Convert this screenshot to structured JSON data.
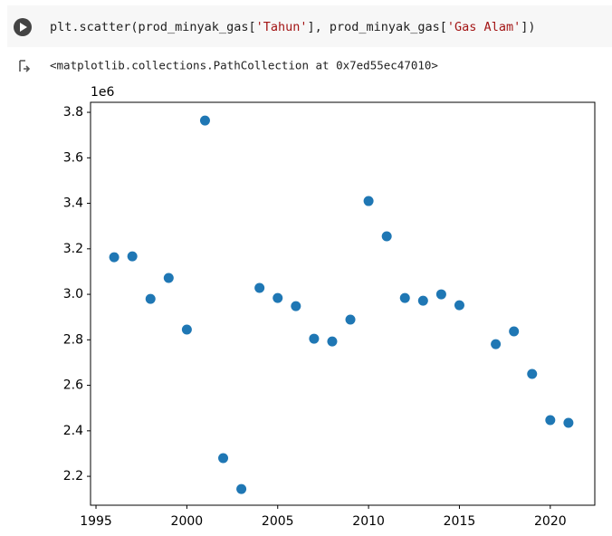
{
  "code_cell": {
    "tokens": [
      {
        "text": "plt.scatter(prod_minyak_gas[",
        "color": "#212121"
      },
      {
        "text": "'Tahun'",
        "color": "#a31515"
      },
      {
        "text": "], prod_minyak_gas[",
        "color": "#212121"
      },
      {
        "text": "'Gas Alam'",
        "color": "#a31515"
      },
      {
        "text": "])",
        "color": "#212121"
      }
    ]
  },
  "output": {
    "text": "<matplotlib.collections.PathCollection at 0x7ed55ec47010>"
  },
  "chart_data": {
    "type": "scatter",
    "color": "#1f77b4",
    "y_offset_label": "1e6",
    "x": [
      1996,
      1997,
      1998,
      1999,
      2000,
      2001,
      2002,
      2003,
      2004,
      2005,
      2006,
      2007,
      2008,
      2009,
      2010,
      2011,
      2012,
      2013,
      2014,
      2015,
      2017,
      2018,
      2019,
      2020,
      2021
    ],
    "values": [
      3.163,
      3.167,
      2.98,
      3.072,
      2.845,
      3.764,
      2.28,
      2.144,
      3.028,
      2.984,
      2.948,
      2.805,
      2.793,
      2.889,
      3.41,
      3.255,
      2.984,
      2.972,
      3.0,
      2.952,
      2.781,
      2.837,
      2.65,
      2.447,
      2.435
    ],
    "xlim": [
      1994.7,
      2022.45
    ],
    "ylim": [
      2.073,
      3.844
    ],
    "xticks": [
      1995,
      2000,
      2005,
      2010,
      2015,
      2020
    ],
    "yticks": [
      2.2,
      2.4,
      2.6,
      2.8,
      {
        "value": 3.0,
        "label": "3.0"
      },
      3.2,
      3.4,
      3.6,
      3.8
    ]
  }
}
